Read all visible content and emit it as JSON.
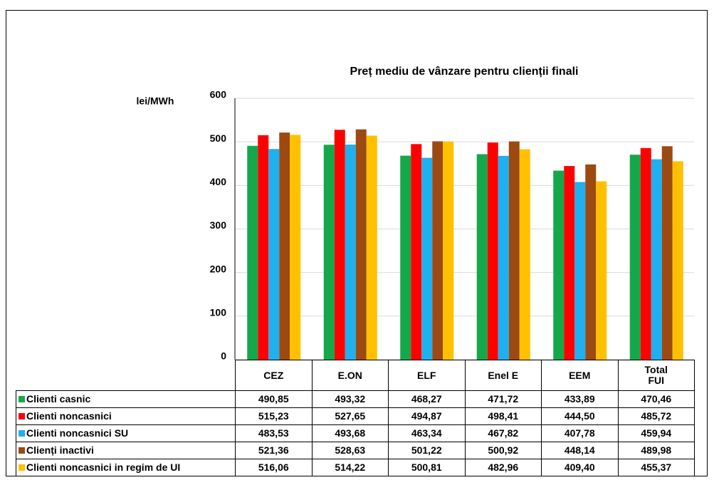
{
  "chart_data": {
    "type": "bar",
    "title": "Preț mediu de vânzare pentru clienții finali",
    "y_label": "lei/MWh",
    "categories": [
      "CEZ",
      "E.ON",
      "ELF",
      "Enel E",
      "EEM",
      "Total FUI"
    ],
    "ylim": [
      0,
      600
    ],
    "yticks": [
      0,
      100,
      200,
      300,
      400,
      500,
      600
    ],
    "grid": true,
    "series": [
      {
        "name": "Clienti casnic",
        "color": "#14a84a",
        "values": [
          490.85,
          493.32,
          468.27,
          471.72,
          433.89,
          470.46
        ],
        "value_labels": [
          "490,85",
          "493,32",
          "468,27",
          "471,72",
          "433,89",
          "470,46"
        ]
      },
      {
        "name": "Clienti noncasnici",
        "color": "#ff0000",
        "values": [
          515.23,
          527.65,
          494.87,
          498.41,
          444.5,
          485.72
        ],
        "value_labels": [
          "515,23",
          "527,65",
          "494,87",
          "498,41",
          "444,50",
          "485,72"
        ]
      },
      {
        "name": "Clienti noncasnici SU",
        "color": "#1fb0ef",
        "values": [
          483.53,
          493.68,
          463.34,
          467.82,
          407.78,
          459.94
        ],
        "value_labels": [
          "483,53",
          "493,68",
          "463,34",
          "467,82",
          "407,78",
          "459,94"
        ]
      },
      {
        "name": "Clienți inactivi",
        "color": "#9c4a12",
        "values": [
          521.36,
          528.63,
          501.22,
          500.92,
          448.14,
          489.98
        ],
        "value_labels": [
          "521,36",
          "528,63",
          "501,22",
          "500,92",
          "448,14",
          "489,98"
        ]
      },
      {
        "name": "Clienti noncasnici in regim de UI",
        "color": "#ffc000",
        "values": [
          516.06,
          514.22,
          500.81,
          482.96,
          409.4,
          455.37
        ],
        "value_labels": [
          "516,06",
          "514,22",
          "500,81",
          "482,96",
          "409,40",
          "455,37"
        ]
      }
    ]
  }
}
